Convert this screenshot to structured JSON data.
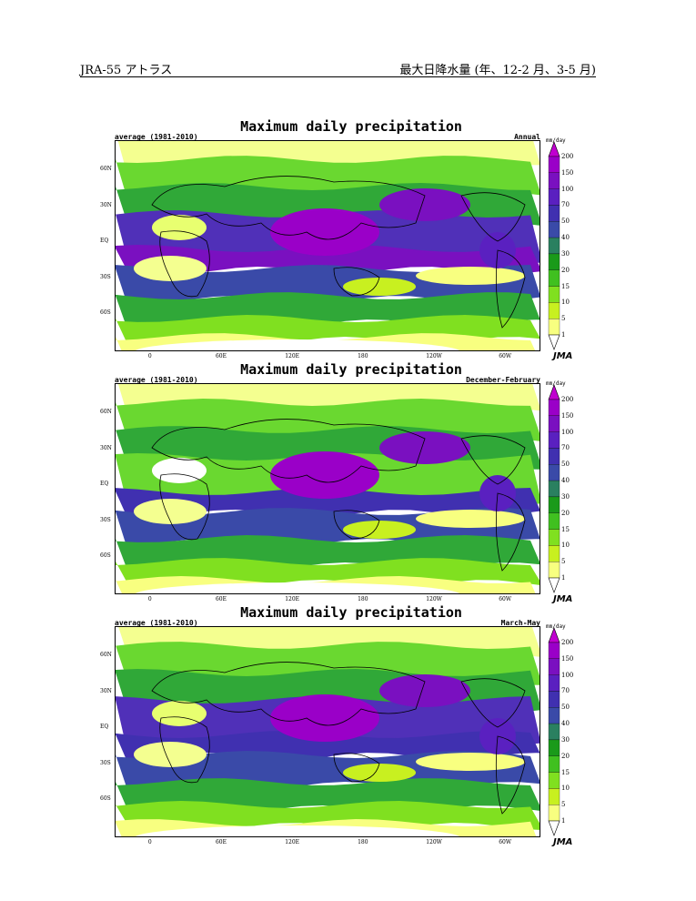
{
  "header": {
    "left": "JRA-55 アトラス",
    "right": "最大日降水量 (年、12-2 月、3-5 月)"
  },
  "panels": [
    {
      "title": "Maximum daily precipitation",
      "subtitle_left": "average (1981-2010)",
      "subtitle_right": "Annual"
    },
    {
      "title": "Maximum daily precipitation",
      "subtitle_left": "average (1981-2010)",
      "subtitle_right": "December-February"
    },
    {
      "title": "Maximum daily precipitation",
      "subtitle_left": "average (1981-2010)",
      "subtitle_right": "March-May"
    }
  ],
  "map": {
    "lat_labels": [
      "60N",
      "30N",
      "EQ",
      "30S",
      "60S"
    ],
    "lon_labels": [
      "0",
      "60E",
      "120E",
      "180",
      "120W",
      "60W"
    ]
  },
  "colorbar": {
    "units": "mm/day",
    "ticks": [
      "200",
      "150",
      "100",
      "70",
      "50",
      "40",
      "30",
      "20",
      "15",
      "10",
      "5",
      "1"
    ],
    "colors": [
      "#c000d0",
      "#9a00c8",
      "#7a10c0",
      "#5a20c0",
      "#4030b0",
      "#3a4aa8",
      "#2a8060",
      "#1a9a1a",
      "#40c020",
      "#80e020",
      "#c8f020",
      "#f8ff80",
      "#ffffff"
    ]
  },
  "logo": "JMA"
}
